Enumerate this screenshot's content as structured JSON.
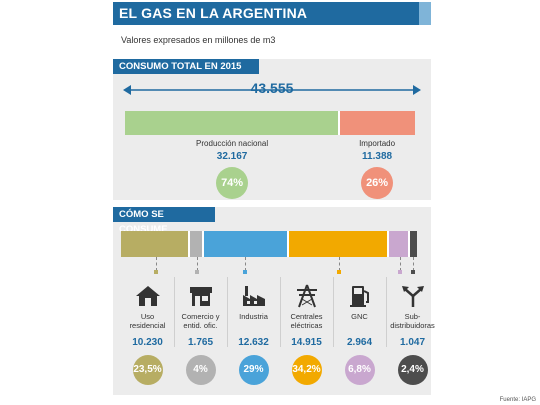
{
  "title": "EL GAS EN LA ARGENTINA",
  "subtitle": "Valores expresados en millones de m3",
  "section_total": "CONSUMO TOTAL EN 2015",
  "section_uses": "CÓMO SE CONSUME",
  "source": "Fuente: IAPG",
  "colors": {
    "primary": "#1f6aa0",
    "nacional": "#a9d18e",
    "importado": "#f0917a",
    "residencial": "#b7ad63",
    "comercio": "#b2b2b2",
    "industria": "#4aa3d9",
    "centrales": "#f2a900",
    "gnc": "#c9a7cf",
    "subdistribuidoras": "#4d4d4d"
  },
  "chart_data": [
    {
      "type": "bar",
      "stacked": true,
      "orientation": "horizontal",
      "total": "43.555",
      "total_value": 43555,
      "categories": [
        "Producción nacional",
        "Importado"
      ],
      "values": [
        32167,
        11388
      ],
      "value_labels": [
        "32.167",
        "11.388"
      ],
      "percent_labels": [
        "74%",
        "26%"
      ],
      "colors": [
        "#a9d18e",
        "#f0917a"
      ]
    },
    {
      "type": "bar",
      "stacked": true,
      "orientation": "horizontal",
      "categories": [
        "Uso residencial",
        "Comercio y entid. ofic.",
        "Industria",
        "Centrales eléctricas",
        "GNC",
        "Sub-distribuidoras"
      ],
      "category_lines": [
        [
          "Uso",
          "residencial"
        ],
        [
          "Comercio y",
          "entid. ofic."
        ],
        [
          "Industria"
        ],
        [
          "Centrales",
          "eléctricas"
        ],
        [
          "GNC"
        ],
        [
          "Sub-",
          "distribuidoras"
        ]
      ],
      "values": [
        10230,
        1765,
        12632,
        14915,
        2964,
        1047
      ],
      "value_labels": [
        "10.230",
        "1.765",
        "12.632",
        "14.915",
        "2.964",
        "1.047"
      ],
      "percent_labels": [
        "23,5%",
        "4%",
        "29%",
        "34,2%",
        "6,8%",
        "2,4%"
      ],
      "icons": [
        "house-icon",
        "store-icon",
        "factory-icon",
        "power-tower-icon",
        "fuel-pump-icon",
        "split-arrows-icon"
      ],
      "colors": [
        "#b7ad63",
        "#b2b2b2",
        "#4aa3d9",
        "#f2a900",
        "#c9a7cf",
        "#4d4d4d"
      ]
    }
  ]
}
